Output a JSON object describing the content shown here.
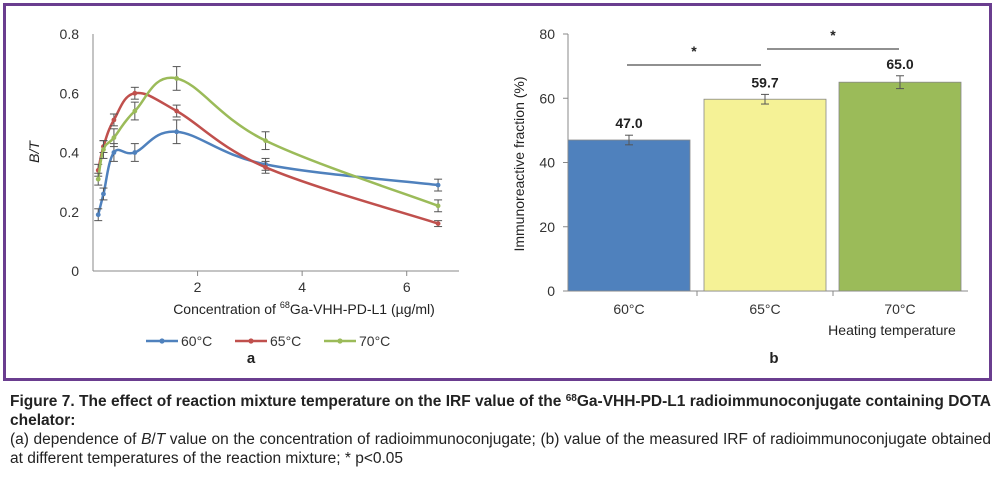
{
  "panel_a_label": "a",
  "panel_b_label": "b",
  "chart_data": [
    {
      "type": "line",
      "panel": "a",
      "xlabel_pre": "Concentration of ",
      "xlabel_sup": "68",
      "xlabel_post": "Ga-VHH-PD-L1 (µg/ml)",
      "ylabel": "B/T",
      "xlim": [
        0,
        7
      ],
      "ylim": [
        0,
        0.8
      ],
      "xticks": [
        "2",
        "4",
        "6"
      ],
      "yticks": [
        "0",
        "0.2",
        "0.4",
        "0.6",
        "0.8"
      ],
      "legend_position": "bottom",
      "grid": false,
      "series": [
        {
          "name": "60°C",
          "color": "#4f81bd",
          "x": [
            0.1,
            0.2,
            0.4,
            0.8,
            1.6,
            3.3,
            6.6
          ],
          "y": [
            0.19,
            0.26,
            0.4,
            0.4,
            0.47,
            0.36,
            0.29
          ],
          "err": [
            0.02,
            0.02,
            0.03,
            0.03,
            0.04,
            0.02,
            0.02
          ]
        },
        {
          "name": "65°C",
          "color": "#c0504d",
          "x": [
            0.1,
            0.2,
            0.4,
            0.8,
            1.6,
            3.3,
            6.6
          ],
          "y": [
            0.34,
            0.42,
            0.51,
            0.6,
            0.54,
            0.35,
            0.16
          ],
          "err": [
            0.02,
            0.02,
            0.02,
            0.02,
            0.02,
            0.02,
            0.01
          ]
        },
        {
          "name": "70°C",
          "color": "#9bbb59",
          "x": [
            0.1,
            0.2,
            0.4,
            0.8,
            1.6,
            3.3,
            6.6
          ],
          "y": [
            0.31,
            0.41,
            0.45,
            0.54,
            0.65,
            0.44,
            0.22
          ],
          "err": [
            0.02,
            0.03,
            0.03,
            0.03,
            0.04,
            0.03,
            0.02
          ]
        }
      ]
    },
    {
      "type": "bar",
      "panel": "b",
      "categories": [
        "60°C",
        "65°C",
        "70°C"
      ],
      "values": [
        47.0,
        59.7,
        65.0
      ],
      "value_labels": [
        "47.0",
        "59.7",
        "65.0"
      ],
      "errors": [
        1.5,
        1.5,
        2.0
      ],
      "colors": [
        "#4f81bd",
        "#f5f296",
        "#9bbb59"
      ],
      "ylabel": "Immunoreactive fraction (%)",
      "xlabel": "Heating temperature",
      "ylim": [
        0,
        80
      ],
      "yticks": [
        "0",
        "20",
        "40",
        "60",
        "80"
      ],
      "grid": false,
      "significance": [
        {
          "from": "60°C",
          "to": "65°C",
          "label": "*"
        },
        {
          "from": "65°C",
          "to": "70°C",
          "label": "*"
        }
      ]
    }
  ],
  "caption": {
    "title_pre": "Figure 7. The effect of reaction mixture temperature on the IRF value of the ",
    "title_sup": "68",
    "title_post": "Ga-VHH-PD-L1 radioimmunoconjugate containing DOTA chelator:",
    "body_a_pre": "(a) dependence of ",
    "body_a_var1": "B",
    "body_a_slash": "/",
    "body_a_var2": "T",
    "body_a_post": " value on the concentration of radioimmunoconjugate; (b) value of the measured IRF of radioimmunoconjugate obtained at different temperatures of the reaction mixture; * p<0.05"
  }
}
